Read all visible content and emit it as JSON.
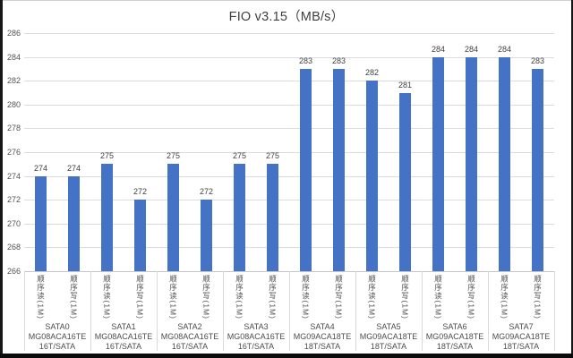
{
  "chart_data": {
    "type": "bar",
    "title": "FIO v3.15（MB/s）",
    "xlabel": "",
    "ylabel": "",
    "ylim": [
      266,
      286
    ],
    "yticks": [
      266,
      268,
      270,
      272,
      274,
      276,
      278,
      280,
      282,
      284,
      286
    ],
    "grid": true,
    "legend_position": "none",
    "bar_color": "#4472C4",
    "gridline_color": "#dcdcdc",
    "axis_text_color": "#555555",
    "value_label_color": "#3f3f3f",
    "series_labels": [
      "顺序读(1M)",
      "顺序写(1M)"
    ],
    "groups": [
      {
        "name": "SATA0",
        "model": "MG08ACA16TE",
        "capacity": "16T/SATA",
        "values": [
          274,
          274
        ]
      },
      {
        "name": "SATA1",
        "model": "MG08ACA16TE",
        "capacity": "16T/SATA",
        "values": [
          275,
          272
        ]
      },
      {
        "name": "SATA2",
        "model": "MG08ACA16TE",
        "capacity": "16T/SATA",
        "values": [
          275,
          272
        ]
      },
      {
        "name": "SATA3",
        "model": "MG08ACA16TE",
        "capacity": "16T/SATA",
        "values": [
          275,
          275
        ]
      },
      {
        "name": "SATA4",
        "model": "MG09ACA18TE",
        "capacity": "18T/SATA",
        "values": [
          283,
          283
        ]
      },
      {
        "name": "SATA5",
        "model": "MG09ACA18TE",
        "capacity": "18T/SATA",
        "values": [
          282,
          281
        ]
      },
      {
        "name": "SATA6",
        "model": "MG09ACA18TE",
        "capacity": "18T/SATA",
        "values": [
          284,
          284
        ]
      },
      {
        "name": "SATA7",
        "model": "MG09ACA18TE",
        "capacity": "18T/SATA",
        "values": [
          284,
          283
        ]
      }
    ]
  }
}
